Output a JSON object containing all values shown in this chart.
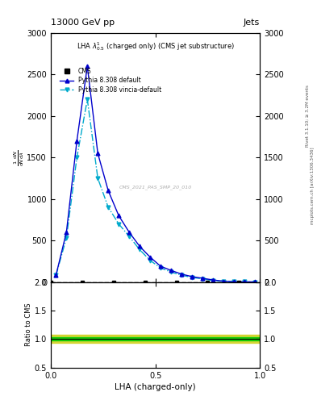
{
  "title_left": "13000 GeV pp",
  "title_right": "Jets",
  "plot_title": "LHA $\\lambda^{1}_{0.5}$ (charged only) (CMS jet substructure)",
  "xlabel": "LHA (charged-only)",
  "ylabel": "$\\frac{1}{\\mathrm{d}N} \\frac{\\mathrm{d}N}{\\mathrm{d}\\lambda}$",
  "ylabel_ratio": "Ratio to CMS",
  "right_label_top": "Rivet 3.1.10; ≥ 3.2M events",
  "right_label_bottom": "mcplots.cern.ch [arXiv:1306.3436]",
  "watermark": "CMS_2021_PAS_SMP_20_010",
  "pythia_x": [
    0.025,
    0.075,
    0.125,
    0.175,
    0.225,
    0.275,
    0.325,
    0.375,
    0.425,
    0.475,
    0.525,
    0.575,
    0.625,
    0.675,
    0.725,
    0.775,
    0.825,
    0.875,
    0.925,
    0.975
  ],
  "pythia_default_y": [
    80,
    600,
    1700,
    2600,
    1550,
    1100,
    800,
    600,
    430,
    300,
    190,
    140,
    95,
    65,
    45,
    25,
    10,
    4,
    2,
    1
  ],
  "pythia_vincia_y": [
    80,
    530,
    1500,
    2200,
    1250,
    900,
    700,
    550,
    390,
    260,
    170,
    120,
    82,
    55,
    38,
    18,
    7,
    3,
    1,
    0.5
  ],
  "ylim_main": [
    0,
    3000
  ],
  "ylim_ratio": [
    0.5,
    2.0
  ],
  "yticks_main": [
    0,
    500,
    1000,
    1500,
    2000,
    2500,
    3000
  ],
  "yticks_ratio": [
    0.5,
    1.0,
    1.5,
    2.0
  ],
  "xlim": [
    0,
    1
  ],
  "xticks": [
    0.0,
    0.5,
    1.0
  ],
  "color_cms": "#000000",
  "color_default": "#0000cc",
  "color_vincia": "#00aacc",
  "color_ratio_line": "#000000",
  "color_ratio_green": "#00cc00",
  "color_ratio_yellow": "#cccc00",
  "legend_entries": [
    "CMS",
    "Pythia 8.308 default",
    "Pythia 8.308 vincia-default"
  ]
}
